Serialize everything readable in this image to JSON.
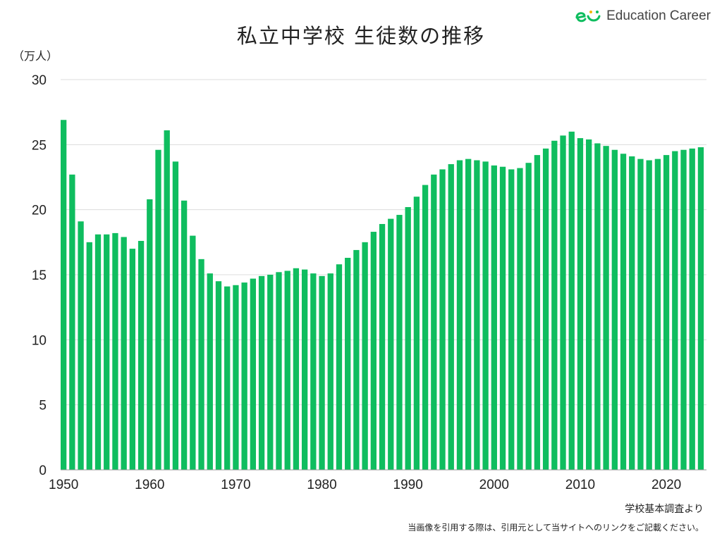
{
  "title": "私立中学校 生徒数の推移",
  "brand": {
    "name": "Education Career",
    "logo_color": "#0fbd5f"
  },
  "colors": {
    "bar": "#0fbd5f",
    "grid": "#dcdcdc",
    "axis": "#999999"
  },
  "footer": {
    "source": "学校基本調査より",
    "notice": "当画像を引用する際は、引用元として当サイトへのリンクをご記載ください。"
  },
  "chart_data": {
    "type": "bar",
    "title": "私立中学校 生徒数の推移",
    "ylabel": "（万人）",
    "ylim": [
      0,
      30
    ],
    "yticks": [
      0,
      5,
      10,
      15,
      20,
      25,
      30
    ],
    "xticks": [
      1950,
      1960,
      1970,
      1980,
      1990,
      2000,
      2010,
      2020
    ],
    "grid": true,
    "categories": [
      1950,
      1951,
      1952,
      1953,
      1954,
      1955,
      1956,
      1957,
      1958,
      1959,
      1960,
      1961,
      1962,
      1963,
      1964,
      1965,
      1966,
      1967,
      1968,
      1969,
      1970,
      1971,
      1972,
      1973,
      1974,
      1975,
      1976,
      1977,
      1978,
      1979,
      1980,
      1981,
      1982,
      1983,
      1984,
      1985,
      1986,
      1987,
      1988,
      1989,
      1990,
      1991,
      1992,
      1993,
      1994,
      1995,
      1996,
      1997,
      1998,
      1999,
      2000,
      2001,
      2002,
      2003,
      2004,
      2005,
      2006,
      2007,
      2008,
      2009,
      2010,
      2011,
      2012,
      2013,
      2014,
      2015,
      2016,
      2017,
      2018,
      2019,
      2020,
      2021,
      2022,
      2023,
      2024
    ],
    "values": [
      26.9,
      22.7,
      19.1,
      17.5,
      18.1,
      18.1,
      18.2,
      17.9,
      17.0,
      17.6,
      20.8,
      24.6,
      26.1,
      23.7,
      20.7,
      18.0,
      16.2,
      15.1,
      14.5,
      14.1,
      14.2,
      14.4,
      14.7,
      14.9,
      15.0,
      15.2,
      15.3,
      15.5,
      15.4,
      15.1,
      14.9,
      15.1,
      15.8,
      16.3,
      16.9,
      17.5,
      18.3,
      18.9,
      19.3,
      19.6,
      20.2,
      21.0,
      21.9,
      22.7,
      23.1,
      23.5,
      23.8,
      23.9,
      23.8,
      23.7,
      23.4,
      23.3,
      23.1,
      23.2,
      23.6,
      24.2,
      24.7,
      25.3,
      25.7,
      26.0,
      25.5,
      25.4,
      25.1,
      24.9,
      24.6,
      24.3,
      24.1,
      23.9,
      23.8,
      23.9,
      24.2,
      24.5,
      24.6,
      24.7,
      24.8
    ]
  }
}
